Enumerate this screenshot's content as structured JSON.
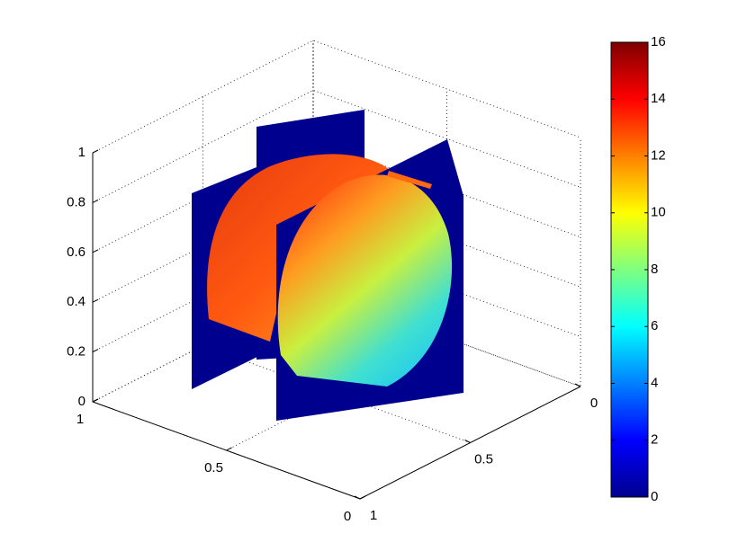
{
  "chart_data": {
    "type": "slice3d",
    "xlim": [
      0,
      1
    ],
    "xticks": [
      0,
      0.5,
      1
    ],
    "ylim": [
      0,
      1
    ],
    "yticks": [
      0,
      0.5,
      1
    ],
    "zlim": [
      0,
      1
    ],
    "zticks": [
      0,
      0.2,
      0.4,
      0.6,
      0.8,
      1
    ],
    "grid": true,
    "colorbar": {
      "clim": [
        0,
        16
      ],
      "ticks": [
        0,
        2,
        4,
        6,
        8,
        10,
        12,
        14,
        16
      ],
      "colormap": "jet"
    }
  }
}
